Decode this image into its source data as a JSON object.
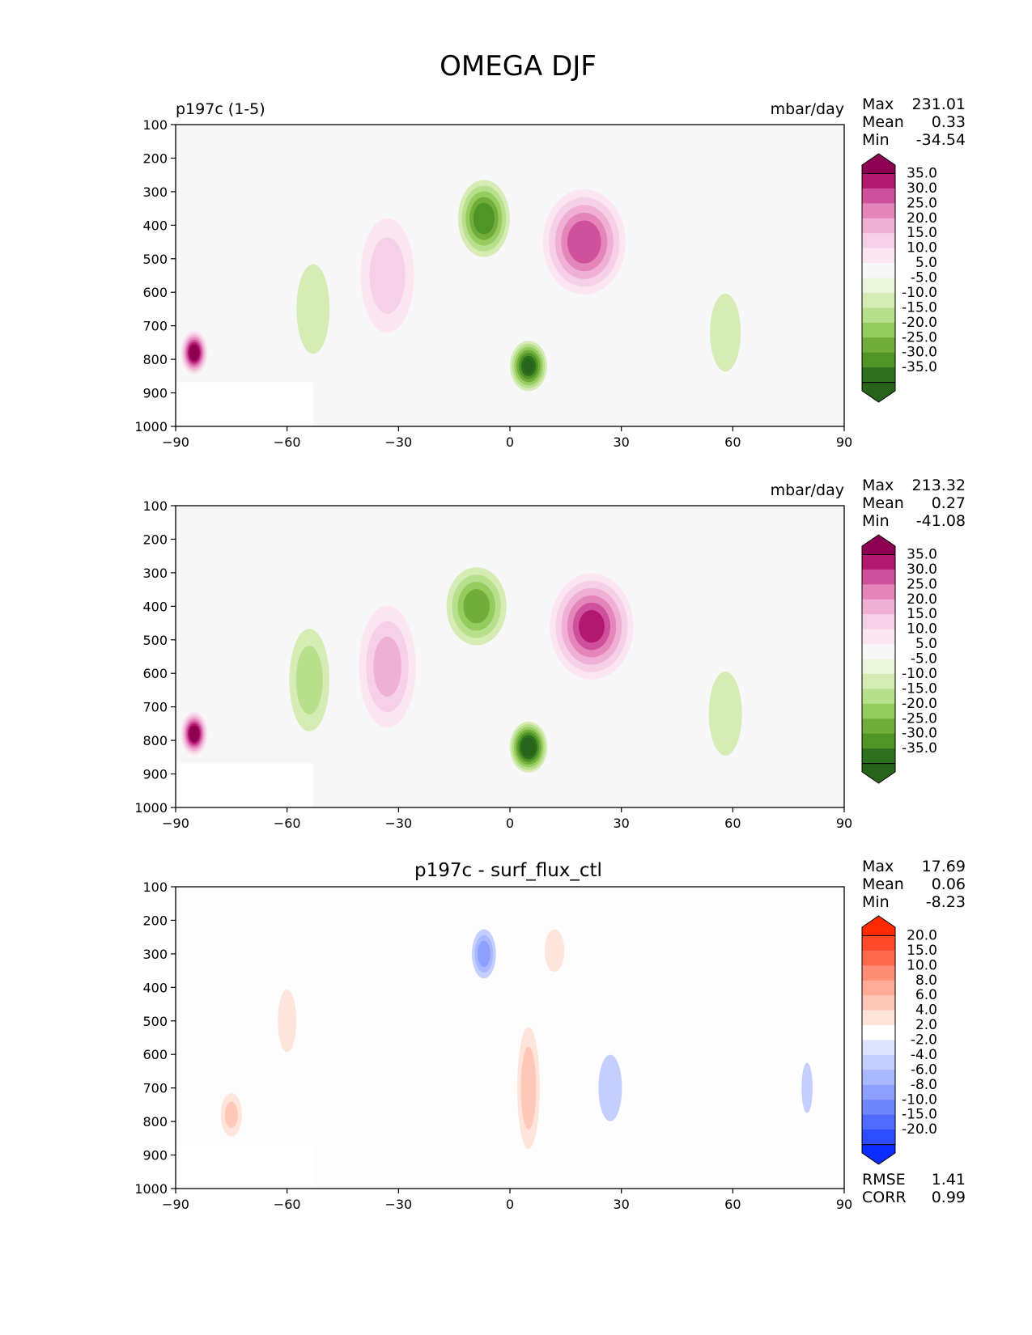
{
  "title": "OMEGA DJF",
  "panels": [
    {
      "title": "",
      "left_label": "p197c (1-5)",
      "right_label": "mbar/day",
      "stats": [
        {
          "label": "Max",
          "value": "231.01"
        },
        {
          "label": "Mean",
          "value": "0.33"
        },
        {
          "label": "Min",
          "value": "-34.54"
        }
      ],
      "extra_stats": [],
      "palette": "omega",
      "colorbar": {
        "ticks": [
          "35.0",
          "30.0",
          "25.0",
          "20.0",
          "15.0",
          "10.0",
          "5.0",
          "-5.0",
          "-10.0",
          "-15.0",
          "-20.0",
          "-25.0",
          "-30.0",
          "-35.0"
        ],
        "colors": [
          "#8e0152",
          "#b2186e",
          "#d0519b",
          "#e486b9",
          "#f0b0d6",
          "#f6d0e6",
          "#fae5f0",
          "#f7f7f7",
          "#ebf5dc",
          "#d5ecb5",
          "#b8df8c",
          "#96cb5f",
          "#72ad3c",
          "#4e9427",
          "#2d711f",
          "#276419"
        ]
      }
    },
    {
      "title": "",
      "left_label": "",
      "right_label": "mbar/day",
      "stats": [
        {
          "label": "Max",
          "value": "213.32"
        },
        {
          "label": "Mean",
          "value": "0.27"
        },
        {
          "label": "Min",
          "value": "-41.08"
        }
      ],
      "extra_stats": [],
      "palette": "omega",
      "colorbar": {
        "ticks": [
          "35.0",
          "30.0",
          "25.0",
          "20.0",
          "15.0",
          "10.0",
          "5.0",
          "-5.0",
          "-10.0",
          "-15.0",
          "-20.0",
          "-25.0",
          "-30.0",
          "-35.0"
        ],
        "colors": [
          "#8e0152",
          "#b2186e",
          "#d0519b",
          "#e486b9",
          "#f0b0d6",
          "#f6d0e6",
          "#fae5f0",
          "#f7f7f7",
          "#ebf5dc",
          "#d5ecb5",
          "#b8df8c",
          "#96cb5f",
          "#72ad3c",
          "#4e9427",
          "#2d711f",
          "#276419"
        ]
      }
    },
    {
      "title": "p197c - surf_flux_ctl",
      "left_label": "",
      "right_label": "",
      "stats": [
        {
          "label": "Max",
          "value": "17.69"
        },
        {
          "label": "Mean",
          "value": "0.06"
        },
        {
          "label": "Min",
          "value": "-8.23"
        }
      ],
      "extra_stats": [
        {
          "label": "RMSE",
          "value": "1.41"
        },
        {
          "label": "CORR",
          "value": "0.99"
        }
      ],
      "palette": "diff",
      "colorbar": {
        "ticks": [
          "20.0",
          "15.0",
          "10.0",
          "8.0",
          "6.0",
          "4.0",
          "2.0",
          "-2.0",
          "-4.0",
          "-6.0",
          "-8.0",
          "-10.0",
          "-15.0",
          "-20.0"
        ],
        "colors": [
          "#ff2a00",
          "#ff4a2a",
          "#ff6a4e",
          "#ff8c75",
          "#ffab98",
          "#ffc7b8",
          "#ffe4dc",
          "#ffffff",
          "#dde4ff",
          "#c4cfff",
          "#a9b8ff",
          "#8ea0ff",
          "#6f86ff",
          "#4f6aff",
          "#2c4cff",
          "#0a2cff"
        ]
      }
    }
  ],
  "chart_data": {
    "type": "heatmap",
    "title": "OMEGA DJF",
    "x_ticks": [
      "−90",
      "−60",
      "−30",
      "0",
      "30",
      "60",
      "90"
    ],
    "y_ticks": [
      "100",
      "200",
      "300",
      "400",
      "500",
      "600",
      "700",
      "800",
      "900",
      "1000"
    ],
    "xlim": [
      -90,
      90
    ],
    "ylim": [
      1000,
      100
    ],
    "units": "mbar/day",
    "fields": [
      {
        "name": "p197c (1-5)",
        "features": [
          {
            "lat": 20,
            "lev": 450,
            "value": 28,
            "lat_width": 8,
            "lev_height": 300
          },
          {
            "lat": -7,
            "lev": 380,
            "value": -28,
            "lat_width": 5,
            "lev_height": 220
          },
          {
            "lat": 5,
            "lev": 820,
            "value": -35,
            "lat_width": 3.5,
            "lev_height": 140
          },
          {
            "lat": -33,
            "lev": 550,
            "value": 12,
            "lat_width": 6,
            "lev_height": 380
          },
          {
            "lat": -53,
            "lev": 650,
            "value": -9,
            "lat_width": 4,
            "lev_height": 320
          },
          {
            "lat": 58,
            "lev": 720,
            "value": -7,
            "lat_width": 4,
            "lev_height": 300
          },
          {
            "lat": -85,
            "lev": 780,
            "value": 40,
            "lat_width": 2.5,
            "lev_height": 120
          }
        ]
      },
      {
        "name": "surf_flux_ctl",
        "features": [
          {
            "lat": 22,
            "lev": 460,
            "value": 30,
            "lat_width": 8,
            "lev_height": 300
          },
          {
            "lat": -9,
            "lev": 400,
            "value": -22,
            "lat_width": 6,
            "lev_height": 230
          },
          {
            "lat": 5,
            "lev": 820,
            "value": -40,
            "lat_width": 3.5,
            "lev_height": 140
          },
          {
            "lat": -33,
            "lev": 580,
            "value": 16,
            "lat_width": 6,
            "lev_height": 380
          },
          {
            "lat": -54,
            "lev": 620,
            "value": -12,
            "lat_width": 4.5,
            "lev_height": 340
          },
          {
            "lat": 58,
            "lev": 720,
            "value": -9,
            "lat_width": 4,
            "lev_height": 300
          },
          {
            "lat": -85,
            "lev": 780,
            "value": 40,
            "lat_width": 2.5,
            "lev_height": 120
          }
        ]
      },
      {
        "name": "p197c - surf_flux_ctl",
        "features": [
          {
            "lat": -7,
            "lev": 300,
            "value": -7,
            "lat_width": 2.5,
            "lev_height": 150
          },
          {
            "lat": 5,
            "lev": 700,
            "value": 5,
            "lat_width": 2.5,
            "lev_height": 400
          },
          {
            "lat": 12,
            "lev": 290,
            "value": 3,
            "lat_width": 2.5,
            "lev_height": 160
          },
          {
            "lat": 27,
            "lev": 700,
            "value": -3,
            "lat_width": 3,
            "lev_height": 250
          },
          {
            "lat": -60,
            "lev": 500,
            "value": 2.5,
            "lat_width": 2.5,
            "lev_height": 250
          },
          {
            "lat": -75,
            "lev": 780,
            "value": 4,
            "lat_width": 2.5,
            "lev_height": 150
          },
          {
            "lat": 80,
            "lev": 700,
            "value": -2.5,
            "lat_width": 1.5,
            "lev_height": 200
          }
        ]
      }
    ]
  }
}
